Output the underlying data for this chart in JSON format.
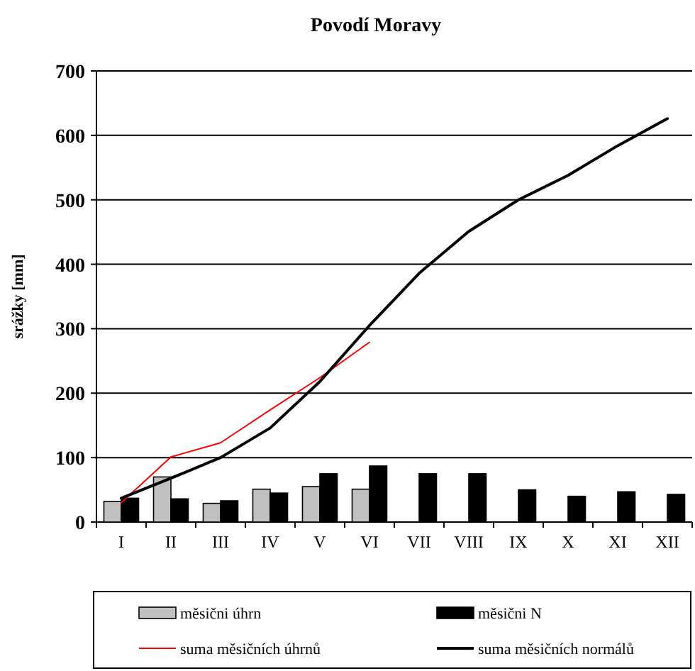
{
  "chart_data": {
    "type": "bar",
    "title": "Povodí Moravy",
    "ylabel": "srážky [mm]",
    "categories": [
      "I",
      "II",
      "III",
      "IV",
      "V",
      "VI",
      "VII",
      "VIII",
      "IX",
      "X",
      "XI",
      "XII"
    ],
    "series": [
      {
        "name": "měsični úhrn",
        "color": "#c0c0c0",
        "values": [
          32,
          70,
          29,
          51,
          55,
          51,
          null,
          null,
          null,
          null,
          null,
          null
        ]
      },
      {
        "name": "měsični N",
        "color": "#000000",
        "values": [
          37,
          36,
          33,
          45,
          75,
          87,
          75,
          75,
          50,
          40,
          47,
          43
        ]
      },
      {
        "name": "suma měsičních úhrnů",
        "type": "line",
        "color": "#ff0000",
        "values": [
          30,
          101,
          123,
          174,
          224,
          279,
          null,
          null,
          null,
          null,
          null,
          null
        ]
      },
      {
        "name": "suma měsičních normálů",
        "type": "line",
        "color": "#000000",
        "values": [
          37,
          68,
          100,
          146,
          218,
          305,
          386,
          451,
          500,
          538,
          584,
          626
        ]
      }
    ],
    "ylim": [
      0,
      700
    ],
    "yticks": [
      0,
      100,
      200,
      300,
      400,
      500,
      600,
      700
    ],
    "grid": "y",
    "legend": "bottom"
  }
}
